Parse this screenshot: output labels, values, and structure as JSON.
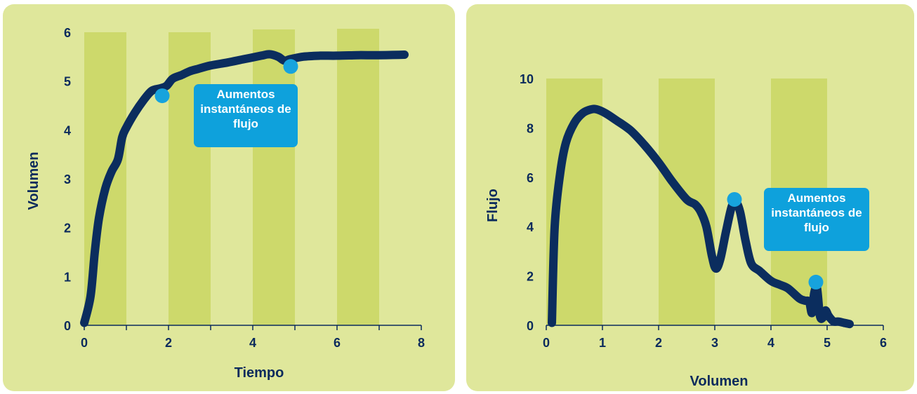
{
  "colors": {
    "panel_bg": "#dfe79b",
    "band": "#cdd96b",
    "axis": "#0a2a5c",
    "curve": "#0b2d5e",
    "marker": "#17a3dd",
    "callout_bg": "#0ea1dc",
    "callout_text": "#ffffff"
  },
  "chart_data": [
    {
      "type": "line",
      "xlabel": "Tiempo",
      "ylabel": "Volumen",
      "xlim": [
        0,
        8
      ],
      "ylim": [
        0,
        6
      ],
      "x_ticks": [
        "0",
        "2",
        "4",
        "6",
        "8"
      ],
      "y_ticks": [
        "0",
        "1",
        "2",
        "3",
        "4",
        "5",
        "6"
      ],
      "grid": false,
      "bands": [
        [
          0,
          1
        ],
        [
          2,
          3
        ],
        [
          4,
          5
        ],
        [
          6,
          7
        ]
      ],
      "series": [
        {
          "x": [
            0,
            0.15,
            0.25,
            0.35,
            0.5,
            0.65,
            0.8,
            0.9,
            1.0,
            1.2,
            1.4,
            1.6,
            1.8,
            1.95,
            2.1,
            2.3,
            2.5,
            2.7,
            3.0,
            3.4,
            3.8,
            4.2,
            4.4,
            4.6,
            4.75,
            4.9,
            5.2,
            5.6,
            6.0,
            6.5,
            7.0,
            7.6
          ],
          "y": [
            0.05,
            0.6,
            1.5,
            2.2,
            2.8,
            3.15,
            3.4,
            3.85,
            4.05,
            4.35,
            4.6,
            4.8,
            4.85,
            4.9,
            5.05,
            5.12,
            5.2,
            5.25,
            5.32,
            5.38,
            5.45,
            5.52,
            5.55,
            5.5,
            5.42,
            5.45,
            5.5,
            5.52,
            5.52,
            5.53,
            5.53,
            5.54
          ]
        }
      ],
      "markers": [
        {
          "x": 1.85,
          "y": 4.7
        },
        {
          "x": 4.9,
          "y": 5.3
        }
      ],
      "annotation": "Aumentos instantáneos de flujo"
    },
    {
      "type": "line",
      "xlabel": "Volumen",
      "ylabel": "Flujo",
      "xlim": [
        0,
        6
      ],
      "ylim": [
        0,
        10
      ],
      "x_ticks": [
        "0",
        "1",
        "2",
        "3",
        "4",
        "5",
        "6"
      ],
      "y_ticks": [
        "0",
        "2",
        "4",
        "6",
        "8",
        "10"
      ],
      "grid": false,
      "bands": [
        [
          0,
          1
        ],
        [
          2,
          3
        ],
        [
          4,
          5
        ]
      ],
      "series": [
        {
          "x": [
            0.1,
            0.15,
            0.25,
            0.35,
            0.5,
            0.65,
            0.8,
            0.9,
            1.05,
            1.25,
            1.5,
            1.75,
            2.0,
            2.25,
            2.5,
            2.65,
            2.75,
            2.85,
            2.95,
            3.02,
            3.1,
            3.2,
            3.3,
            3.37,
            3.45,
            3.55,
            3.65,
            3.8,
            4.0,
            4.15,
            4.3,
            4.5,
            4.6,
            4.68,
            4.73,
            4.77,
            4.82,
            4.87,
            4.92,
            4.97,
            5.02,
            5.07,
            5.12,
            5.2,
            5.3,
            5.4
          ],
          "y": [
            0.1,
            4.0,
            6.2,
            7.4,
            8.2,
            8.6,
            8.75,
            8.75,
            8.6,
            8.3,
            7.9,
            7.3,
            6.6,
            5.8,
            5.1,
            4.9,
            4.6,
            4.0,
            2.8,
            2.3,
            2.7,
            3.8,
            4.8,
            5.0,
            4.6,
            3.4,
            2.5,
            2.2,
            1.8,
            1.65,
            1.5,
            1.1,
            1.0,
            0.95,
            0.5,
            1.3,
            1.5,
            0.4,
            0.3,
            0.6,
            0.4,
            0.25,
            0.15,
            0.15,
            0.1,
            0.05
          ]
        }
      ],
      "markers": [
        {
          "x": 3.35,
          "y": 5.1
        },
        {
          "x": 4.8,
          "y": 1.75
        }
      ],
      "annotation": "Aumentos instantáneos de flujo"
    }
  ]
}
